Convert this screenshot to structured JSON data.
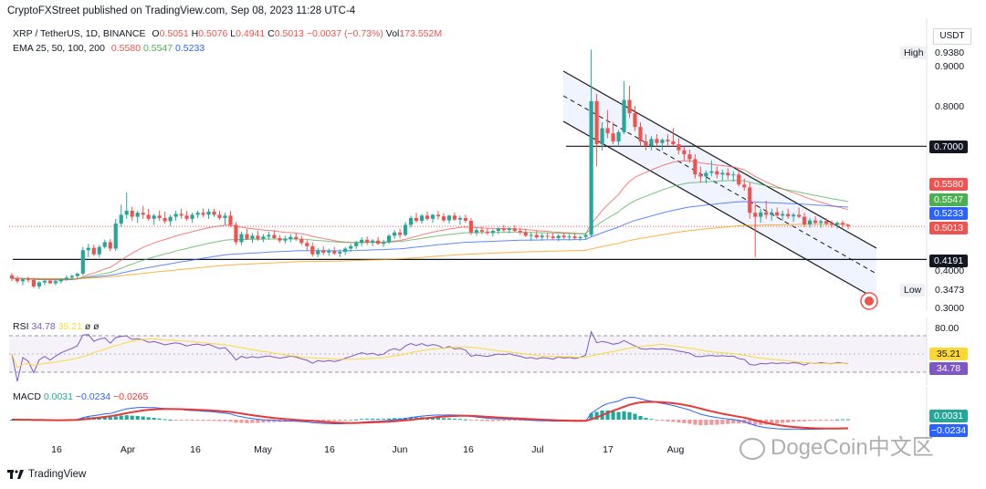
{
  "header": {
    "publisher": "CryptoFXStreet published on TradingView.com, Sep 08, 2023 11:28 UTC-4"
  },
  "legend": {
    "symbol": "XRP / TetherUS, 1D, BINANCE",
    "ohlc": [
      {
        "key": "O",
        "value": "0.5051"
      },
      {
        "key": "H",
        "value": "0.5076"
      },
      {
        "key": "L",
        "value": "0.4941"
      },
      {
        "key": "C",
        "value": "0.5013"
      }
    ],
    "change": "−0.0037 (−0.73%)",
    "vol_label": "Vol",
    "vol_value": "173.552M",
    "ema_label": "EMA 25, 50, 100, 200",
    "ema_values": [
      "0.5580",
      "0.5547",
      "0.5233"
    ]
  },
  "price_axis": {
    "currency": "USDT",
    "ticks": [
      "0.9000",
      "0.8000",
      "0.4000",
      "0.3000"
    ],
    "high_label": "High",
    "high_value": "0.9380",
    "low_label": "Low",
    "low_value": "0.3473",
    "tags": {
      "level_high": "0.7000",
      "ema25": "0.5580",
      "ema50": "0.5547",
      "ema100": "0.5233",
      "last": "0.5013",
      "level_low": "0.4191"
    }
  },
  "rsi": {
    "label": "RSI",
    "value1": "34.78",
    "value2": "35.21",
    "extra": "ø ø",
    "tick": "80.00",
    "tag1": "35.21",
    "tag2": "34.78"
  },
  "macd": {
    "label": "MACD",
    "v1": "0.0031",
    "v2": "−0.0234",
    "v3": "−0.0265",
    "tag1": "0.0031",
    "tag2": "−0.0234"
  },
  "x_axis": [
    "16",
    "Apr",
    "16",
    "May",
    "16",
    "Jun",
    "16",
    "Jul",
    "17",
    "Aug"
  ],
  "watermark": "DogeCoin中文区",
  "footer": {
    "brand": "TradingView"
  },
  "colors": {
    "up": "#26a69a",
    "down": "#ef5350",
    "ema25": "#ef5350",
    "ema50": "#4caf50",
    "ema100": "#2962ff",
    "ema200": "#ff9800",
    "rsi": "#7e57c2",
    "rsi_ma": "#fdd835",
    "macd": "#2962ff",
    "signal": "#e53935",
    "channel": "#2962ff"
  },
  "chart_data": {
    "type": "candlestick",
    "x_range": [
      "2023-03-08",
      "2023-09-08"
    ],
    "price_range": [
      0.3,
      0.96
    ],
    "candles": [
      [
        0.38,
        0.385,
        0.365,
        0.372
      ],
      [
        0.372,
        0.378,
        0.36,
        0.365
      ],
      [
        0.365,
        0.372,
        0.355,
        0.37
      ],
      [
        0.37,
        0.376,
        0.362,
        0.368
      ],
      [
        0.368,
        0.372,
        0.348,
        0.352
      ],
      [
        0.352,
        0.366,
        0.346,
        0.362
      ],
      [
        0.362,
        0.37,
        0.355,
        0.366
      ],
      [
        0.366,
        0.372,
        0.358,
        0.36
      ],
      [
        0.36,
        0.369,
        0.355,
        0.365
      ],
      [
        0.365,
        0.372,
        0.36,
        0.37
      ],
      [
        0.37,
        0.38,
        0.366,
        0.374
      ],
      [
        0.374,
        0.382,
        0.368,
        0.378
      ],
      [
        0.378,
        0.386,
        0.372,
        0.384
      ],
      [
        0.384,
        0.45,
        0.38,
        0.442
      ],
      [
        0.442,
        0.458,
        0.425,
        0.448
      ],
      [
        0.448,
        0.456,
        0.428,
        0.432
      ],
      [
        0.432,
        0.455,
        0.425,
        0.45
      ],
      [
        0.45,
        0.468,
        0.446,
        0.462
      ],
      [
        0.462,
        0.47,
        0.44,
        0.446
      ],
      [
        0.446,
        0.52,
        0.44,
        0.508
      ],
      [
        0.508,
        0.555,
        0.5,
        0.53
      ],
      [
        0.53,
        0.585,
        0.52,
        0.54
      ],
      [
        0.54,
        0.55,
        0.515,
        0.525
      ],
      [
        0.525,
        0.54,
        0.51,
        0.535
      ],
      [
        0.535,
        0.552,
        0.52,
        0.53
      ],
      [
        0.53,
        0.545,
        0.515,
        0.52
      ],
      [
        0.52,
        0.532,
        0.505,
        0.528
      ],
      [
        0.528,
        0.54,
        0.515,
        0.522
      ],
      [
        0.522,
        0.538,
        0.508,
        0.514
      ],
      [
        0.514,
        0.53,
        0.502,
        0.525
      ],
      [
        0.525,
        0.54,
        0.515,
        0.532
      ],
      [
        0.532,
        0.545,
        0.52,
        0.528
      ],
      [
        0.528,
        0.54,
        0.515,
        0.52
      ],
      [
        0.52,
        0.535,
        0.51,
        0.53
      ],
      [
        0.53,
        0.54,
        0.522,
        0.535
      ],
      [
        0.535,
        0.546,
        0.524,
        0.53
      ],
      [
        0.53,
        0.545,
        0.52,
        0.538
      ],
      [
        0.538,
        0.545,
        0.525,
        0.53
      ],
      [
        0.53,
        0.54,
        0.518,
        0.522
      ],
      [
        0.522,
        0.535,
        0.505,
        0.528
      ],
      [
        0.528,
        0.54,
        0.5,
        0.505
      ],
      [
        0.505,
        0.512,
        0.455,
        0.462
      ],
      [
        0.462,
        0.488,
        0.455,
        0.482
      ],
      [
        0.482,
        0.495,
        0.468,
        0.47
      ],
      [
        0.47,
        0.485,
        0.46,
        0.478
      ],
      [
        0.478,
        0.49,
        0.465,
        0.47
      ],
      [
        0.47,
        0.482,
        0.462,
        0.476
      ],
      [
        0.476,
        0.488,
        0.468,
        0.48
      ],
      [
        0.48,
        0.492,
        0.47,
        0.472
      ],
      [
        0.472,
        0.48,
        0.46,
        0.466
      ],
      [
        0.466,
        0.478,
        0.458,
        0.47
      ],
      [
        0.47,
        0.482,
        0.462,
        0.475
      ],
      [
        0.475,
        0.485,
        0.465,
        0.47
      ],
      [
        0.47,
        0.478,
        0.455,
        0.46
      ],
      [
        0.46,
        0.468,
        0.44,
        0.452
      ],
      [
        0.452,
        0.462,
        0.426,
        0.432
      ],
      [
        0.432,
        0.448,
        0.425,
        0.442
      ],
      [
        0.442,
        0.452,
        0.43,
        0.436
      ],
      [
        0.436,
        0.446,
        0.428,
        0.44
      ],
      [
        0.44,
        0.45,
        0.43,
        0.434
      ],
      [
        0.434,
        0.444,
        0.425,
        0.438
      ],
      [
        0.438,
        0.45,
        0.43,
        0.446
      ],
      [
        0.446,
        0.458,
        0.438,
        0.452
      ],
      [
        0.452,
        0.466,
        0.445,
        0.46
      ],
      [
        0.46,
        0.474,
        0.452,
        0.468
      ],
      [
        0.468,
        0.476,
        0.455,
        0.462
      ],
      [
        0.462,
        0.47,
        0.452,
        0.466
      ],
      [
        0.466,
        0.475,
        0.455,
        0.458
      ],
      [
        0.458,
        0.468,
        0.45,
        0.462
      ],
      [
        0.462,
        0.482,
        0.458,
        0.478
      ],
      [
        0.478,
        0.492,
        0.47,
        0.486
      ],
      [
        0.486,
        0.495,
        0.472,
        0.48
      ],
      [
        0.48,
        0.512,
        0.476,
        0.505
      ],
      [
        0.505,
        0.528,
        0.498,
        0.522
      ],
      [
        0.522,
        0.535,
        0.51,
        0.515
      ],
      [
        0.515,
        0.532,
        0.508,
        0.528
      ],
      [
        0.528,
        0.538,
        0.515,
        0.52
      ],
      [
        0.52,
        0.532,
        0.51,
        0.53
      ],
      [
        0.53,
        0.54,
        0.518,
        0.526
      ],
      [
        0.526,
        0.534,
        0.512,
        0.516
      ],
      [
        0.516,
        0.53,
        0.508,
        0.528
      ],
      [
        0.528,
        0.536,
        0.515,
        0.518
      ],
      [
        0.518,
        0.528,
        0.505,
        0.522
      ],
      [
        0.522,
        0.53,
        0.51,
        0.515
      ],
      [
        0.515,
        0.522,
        0.48,
        0.486
      ],
      [
        0.486,
        0.498,
        0.478,
        0.492
      ],
      [
        0.492,
        0.5,
        0.482,
        0.488
      ],
      [
        0.488,
        0.496,
        0.48,
        0.485
      ],
      [
        0.485,
        0.494,
        0.476,
        0.49
      ],
      [
        0.49,
        0.5,
        0.482,
        0.495
      ],
      [
        0.495,
        0.505,
        0.486,
        0.492
      ],
      [
        0.492,
        0.5,
        0.484,
        0.496
      ],
      [
        0.496,
        0.504,
        0.488,
        0.49
      ],
      [
        0.49,
        0.498,
        0.48,
        0.486
      ],
      [
        0.486,
        0.495,
        0.475,
        0.478
      ],
      [
        0.478,
        0.486,
        0.465,
        0.48
      ],
      [
        0.48,
        0.49,
        0.47,
        0.474
      ],
      [
        0.474,
        0.484,
        0.466,
        0.478
      ],
      [
        0.478,
        0.486,
        0.47,
        0.476
      ],
      [
        0.476,
        0.484,
        0.468,
        0.472
      ],
      [
        0.472,
        0.482,
        0.464,
        0.478
      ],
      [
        0.478,
        0.486,
        0.47,
        0.474
      ],
      [
        0.474,
        0.482,
        0.466,
        0.476
      ],
      [
        0.476,
        0.485,
        0.468,
        0.472
      ],
      [
        0.472,
        0.478,
        0.466,
        0.475
      ],
      [
        0.475,
        0.485,
        0.47,
        0.48
      ],
      [
        0.48,
        0.94,
        0.475,
        0.812
      ],
      [
        0.812,
        0.83,
        0.65,
        0.705
      ],
      [
        0.705,
        0.76,
        0.69,
        0.745
      ],
      [
        0.745,
        0.79,
        0.72,
        0.732
      ],
      [
        0.732,
        0.76,
        0.705,
        0.712
      ],
      [
        0.712,
        0.74,
        0.7,
        0.735
      ],
      [
        0.735,
        0.862,
        0.73,
        0.815
      ],
      [
        0.815,
        0.85,
        0.77,
        0.782
      ],
      [
        0.782,
        0.8,
        0.738,
        0.748
      ],
      [
        0.748,
        0.76,
        0.7,
        0.712
      ],
      [
        0.712,
        0.73,
        0.69,
        0.702
      ],
      [
        0.702,
        0.725,
        0.69,
        0.718
      ],
      [
        0.718,
        0.73,
        0.7,
        0.708
      ],
      [
        0.708,
        0.72,
        0.69,
        0.716
      ],
      [
        0.716,
        0.73,
        0.7,
        0.712
      ],
      [
        0.712,
        0.745,
        0.7,
        0.705
      ],
      [
        0.705,
        0.72,
        0.68,
        0.69
      ],
      [
        0.69,
        0.7,
        0.665,
        0.68
      ],
      [
        0.68,
        0.692,
        0.66,
        0.668
      ],
      [
        0.668,
        0.68,
        0.62,
        0.63
      ],
      [
        0.63,
        0.65,
        0.61,
        0.625
      ],
      [
        0.625,
        0.64,
        0.608,
        0.634
      ],
      [
        0.634,
        0.665,
        0.625,
        0.638
      ],
      [
        0.638,
        0.65,
        0.62,
        0.63
      ],
      [
        0.63,
        0.642,
        0.615,
        0.634
      ],
      [
        0.634,
        0.645,
        0.618,
        0.628
      ],
      [
        0.628,
        0.638,
        0.612,
        0.63
      ],
      [
        0.63,
        0.64,
        0.6,
        0.605
      ],
      [
        0.605,
        0.62,
        0.59,
        0.598
      ],
      [
        0.598,
        0.61,
        0.52,
        0.535
      ],
      [
        0.535,
        0.56,
        0.425,
        0.525
      ],
      [
        0.525,
        0.545,
        0.51,
        0.536
      ],
      [
        0.536,
        0.565,
        0.52,
        0.53
      ],
      [
        0.53,
        0.545,
        0.515,
        0.536
      ],
      [
        0.536,
        0.548,
        0.522,
        0.528
      ],
      [
        0.528,
        0.54,
        0.515,
        0.532
      ],
      [
        0.532,
        0.545,
        0.52,
        0.526
      ],
      [
        0.526,
        0.535,
        0.512,
        0.53
      ],
      [
        0.53,
        0.548,
        0.522,
        0.525
      ],
      [
        0.525,
        0.535,
        0.5,
        0.506
      ],
      [
        0.506,
        0.522,
        0.498,
        0.516
      ],
      [
        0.516,
        0.526,
        0.505,
        0.51
      ],
      [
        0.51,
        0.518,
        0.498,
        0.514
      ],
      [
        0.514,
        0.522,
        0.504,
        0.508
      ],
      [
        0.508,
        0.516,
        0.498,
        0.505
      ],
      [
        0.505,
        0.513,
        0.496,
        0.51
      ],
      [
        0.51,
        0.516,
        0.498,
        0.5051
      ],
      [
        0.5051,
        0.5076,
        0.4941,
        0.5013
      ]
    ],
    "ema": [
      {
        "name": "EMA 25",
        "value": 0.558
      },
      {
        "name": "EMA 50",
        "value": 0.5547
      },
      {
        "name": "EMA 100",
        "value": 0.5233
      }
    ],
    "levels": [
      0.7,
      0.4191
    ],
    "high": 0.938,
    "low": 0.3473,
    "rsi": {
      "value": 34.78,
      "ma": 35.21,
      "bands": [
        70,
        30
      ],
      "ylim": [
        0,
        100
      ]
    },
    "macd": {
      "macd": 0.0031,
      "signal": -0.0234,
      "hist": -0.0265
    }
  }
}
